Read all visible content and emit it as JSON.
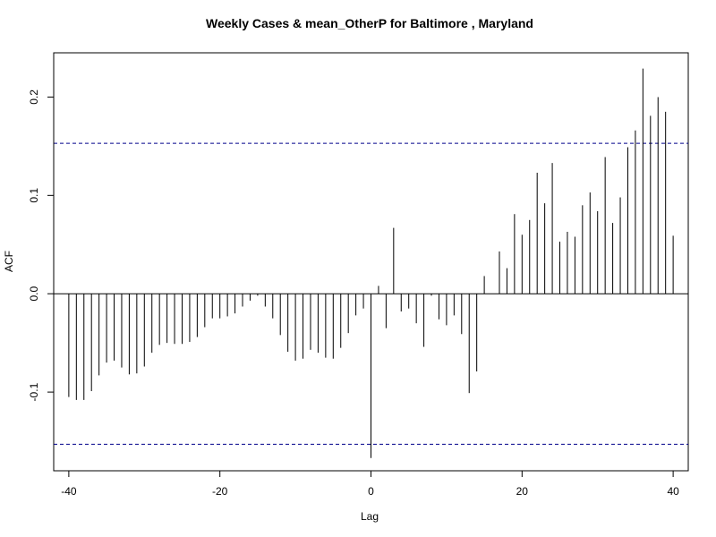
{
  "chart_data": {
    "type": "bar",
    "title": "Weekly Cases & mean_OtherP for Baltimore , Maryland",
    "xlabel": "Lag",
    "ylabel": "ACF",
    "xlim": [
      -42,
      42
    ],
    "ylim": [
      -0.18,
      0.245
    ],
    "x_ticks": [
      -40,
      -20,
      0,
      20,
      40
    ],
    "x_tick_labels": [
      "-40",
      "-20",
      "0",
      "20",
      "40"
    ],
    "y_ticks": [
      -0.1,
      0.0,
      0.1,
      0.2
    ],
    "y_tick_labels": [
      "-0.1",
      "0.0",
      "0.1",
      "0.2"
    ],
    "confidence_band": 0.153,
    "zero_line": true,
    "grid": false,
    "lags": [
      -40,
      -39,
      -38,
      -37,
      -36,
      -35,
      -34,
      -33,
      -32,
      -31,
      -30,
      -29,
      -28,
      -27,
      -26,
      -25,
      -24,
      -23,
      -22,
      -21,
      -20,
      -19,
      -18,
      -17,
      -16,
      -15,
      -14,
      -13,
      -12,
      -11,
      -10,
      -9,
      -8,
      -7,
      -6,
      -5,
      -4,
      -3,
      -2,
      -1,
      0,
      1,
      2,
      3,
      4,
      5,
      6,
      7,
      8,
      9,
      10,
      11,
      12,
      13,
      14,
      15,
      16,
      17,
      18,
      19,
      20,
      21,
      22,
      23,
      24,
      25,
      26,
      27,
      28,
      29,
      30,
      31,
      32,
      33,
      34,
      35,
      36,
      37,
      38,
      39,
      40
    ],
    "values": [
      -0.105,
      -0.108,
      -0.108,
      -0.099,
      -0.083,
      -0.07,
      -0.068,
      -0.075,
      -0.082,
      -0.081,
      -0.074,
      -0.06,
      -0.052,
      -0.05,
      -0.051,
      -0.051,
      -0.049,
      -0.044,
      -0.034,
      -0.025,
      -0.025,
      -0.023,
      -0.02,
      -0.013,
      -0.007,
      -0.002,
      -0.013,
      -0.025,
      -0.042,
      -0.059,
      -0.068,
      -0.066,
      -0.057,
      -0.06,
      -0.065,
      -0.066,
      -0.055,
      -0.04,
      -0.022,
      -0.015,
      -0.167,
      0.008,
      -0.035,
      0.067,
      -0.018,
      -0.015,
      -0.03,
      -0.054,
      -0.002,
      -0.026,
      -0.032,
      -0.022,
      -0.041,
      -0.101,
      -0.079,
      0.018,
      0.0,
      0.043,
      0.026,
      0.081,
      0.06,
      0.075,
      0.123,
      0.092,
      0.133,
      0.053,
      0.063,
      0.058,
      0.09,
      0.103,
      0.084,
      0.139,
      0.072,
      0.098,
      0.149,
      0.166,
      0.229,
      0.181,
      0.2,
      0.185,
      0.059
    ]
  }
}
